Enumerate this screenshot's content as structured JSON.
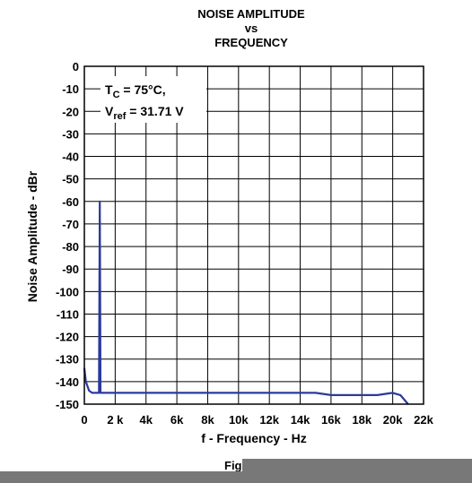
{
  "chart_data": {
    "type": "line",
    "title_lines": [
      "NOISE AMPLITUDE",
      "vs",
      "FREQUENCY"
    ],
    "xlabel": "f - Frequency - Hz",
    "ylabel": "Noise Amplitude - dBr",
    "xlim": [
      0,
      22000
    ],
    "ylim": [
      -150,
      0
    ],
    "x_ticks": [
      0,
      2000,
      4000,
      6000,
      8000,
      10000,
      12000,
      14000,
      16000,
      18000,
      20000,
      22000
    ],
    "x_tick_labels": [
      "0",
      "2 k",
      "4k",
      "6k",
      "8k",
      "10k",
      "12k",
      "14k",
      "16k",
      "18k",
      "20k",
      "22k"
    ],
    "y_ticks": [
      0,
      -10,
      -20,
      -30,
      -40,
      -50,
      -60,
      -70,
      -80,
      -90,
      -100,
      -110,
      -120,
      -130,
      -140,
      -150
    ],
    "y_tick_labels": [
      "0",
      "-10",
      "-20",
      "-30",
      "-40",
      "-50",
      "-60",
      "-70",
      "-80",
      "-90",
      "-100",
      "-110",
      "-120",
      "-130",
      "-140",
      "-150"
    ],
    "grid": true,
    "annotation": {
      "line1_main": "T",
      "line1_sub": "C",
      "line1_rest": " = 75°C,",
      "line2_main": "V",
      "line2_sub": "ref",
      "line2_rest": " = 31.71 V"
    },
    "series": [
      {
        "color": "#2b3a9b",
        "x": [
          0,
          100,
          300,
          500,
          800,
          950,
          1000,
          1050,
          1200,
          2000,
          3000,
          4000,
          5000,
          6000,
          7000,
          8000,
          9000,
          10000,
          11000,
          12000,
          13000,
          14000,
          15000,
          16000,
          17000,
          18000,
          19000,
          20000,
          20500,
          21000
        ],
        "y": [
          -134,
          -140,
          -144,
          -145,
          -145,
          -145,
          -60,
          -145,
          -145,
          -145,
          -145,
          -145,
          -145,
          -145,
          -145,
          -145,
          -145,
          -145,
          -145,
          -145,
          -145,
          -145,
          -145,
          -146,
          -146,
          -146,
          -146,
          -145,
          -146,
          -150
        ]
      }
    ],
    "caption": "Fig"
  }
}
